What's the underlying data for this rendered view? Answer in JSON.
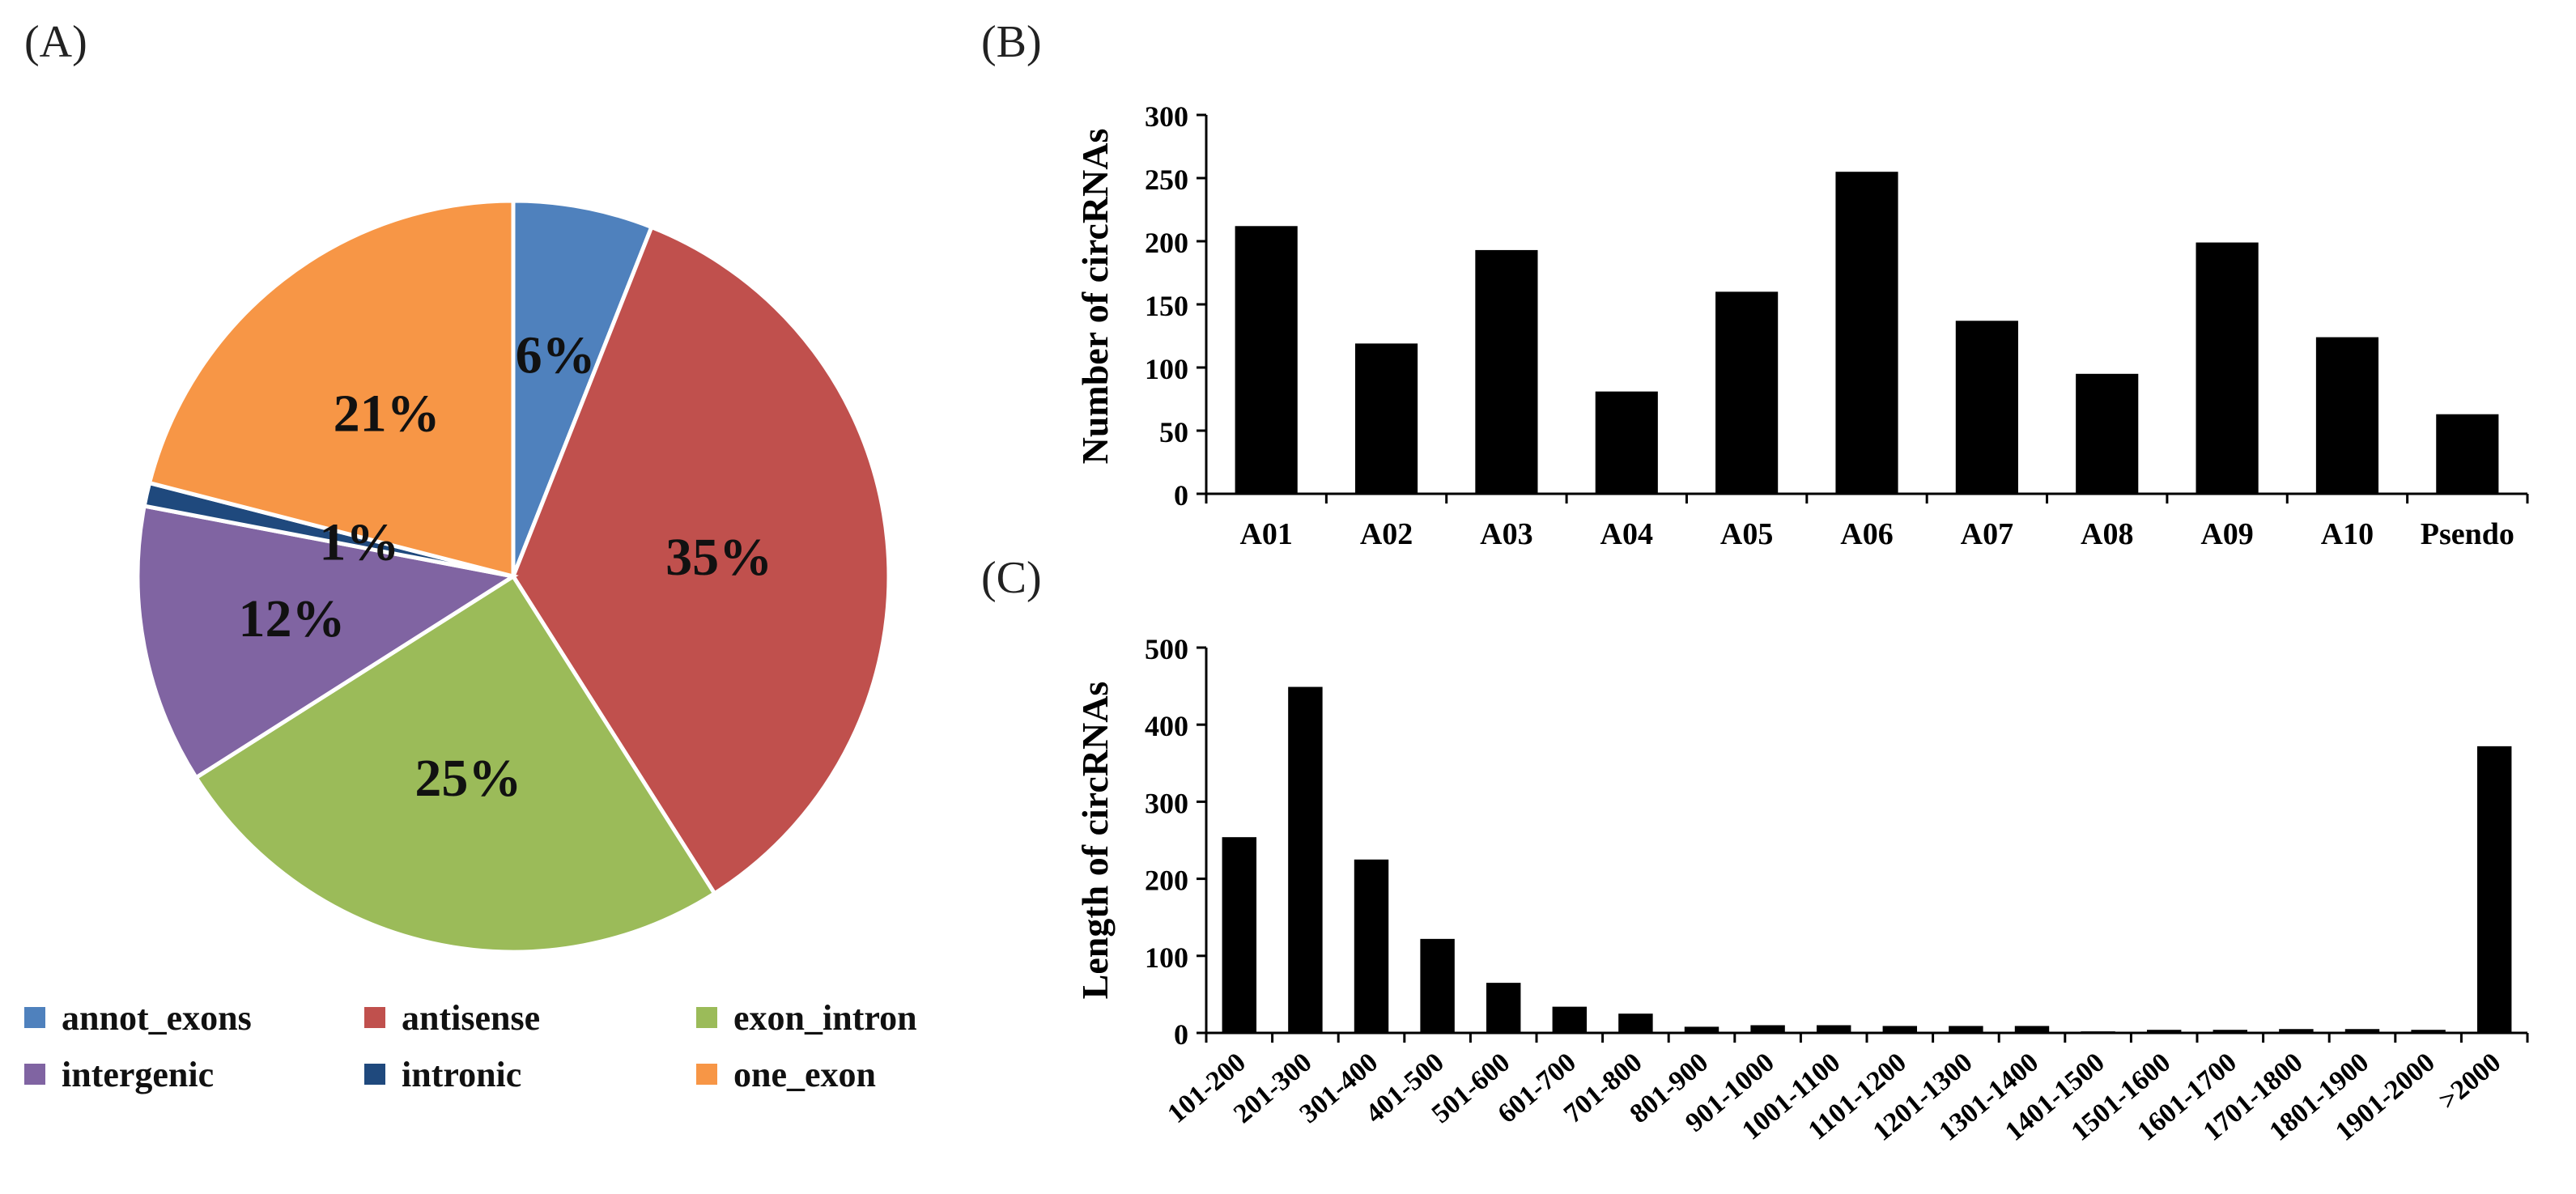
{
  "chart_data": [
    {
      "panel_label": "(A)",
      "type": "pie",
      "slices": [
        {
          "name": "annot_exons",
          "value": 6,
          "label": "6%",
          "color": "#4f81bd"
        },
        {
          "name": "antisense",
          "value": 35,
          "label": "35%",
          "color": "#c0504d"
        },
        {
          "name": "exon_intron",
          "value": 25,
          "label": "25%",
          "color": "#9bbb59"
        },
        {
          "name": "intergenic",
          "value": 12,
          "label": "12%",
          "color": "#8064a2"
        },
        {
          "name": "intronic",
          "value": 1,
          "label": "1%",
          "color": "#1f497d"
        },
        {
          "name": "one_exon",
          "value": 21,
          "label": "21%",
          "color": "#f79646"
        }
      ],
      "legend_position": "bottom"
    },
    {
      "panel_label": "(B)",
      "type": "bar",
      "ylabel": "Number of circRNAs",
      "xlabel": "",
      "ylim": [
        0,
        300
      ],
      "yticks": [
        0,
        50,
        100,
        150,
        200,
        250,
        300
      ],
      "categories": [
        "A01",
        "A02",
        "A03",
        "A04",
        "A05",
        "A06",
        "A07",
        "A08",
        "A09",
        "A10",
        "Psendo"
      ],
      "values": [
        212,
        119,
        193,
        81,
        160,
        255,
        137,
        95,
        199,
        124,
        63
      ],
      "bar_color": "#000000"
    },
    {
      "panel_label": "(C)",
      "type": "bar",
      "ylabel": "Length of circRNAs",
      "xlabel": "",
      "ylim": [
        0,
        500
      ],
      "yticks": [
        0,
        100,
        200,
        300,
        400,
        500
      ],
      "categories": [
        "101-200",
        "201-300",
        "301-400",
        "401-500",
        "501-600",
        "601-700",
        "701-800",
        "801-900",
        "901-1000",
        "1001-1100",
        "1101-1200",
        "1201-1300",
        "1301-1400",
        "1401-1500",
        "1501-1600",
        "1601-1700",
        "1701-1800",
        "1801-1900",
        "1901-2000",
        ">2000"
      ],
      "values": [
        254,
        449,
        225,
        122,
        65,
        34,
        25,
        8,
        10,
        10,
        9,
        9,
        9,
        2,
        4,
        4,
        5,
        5,
        4,
        372
      ],
      "bar_color": "#000000"
    }
  ]
}
